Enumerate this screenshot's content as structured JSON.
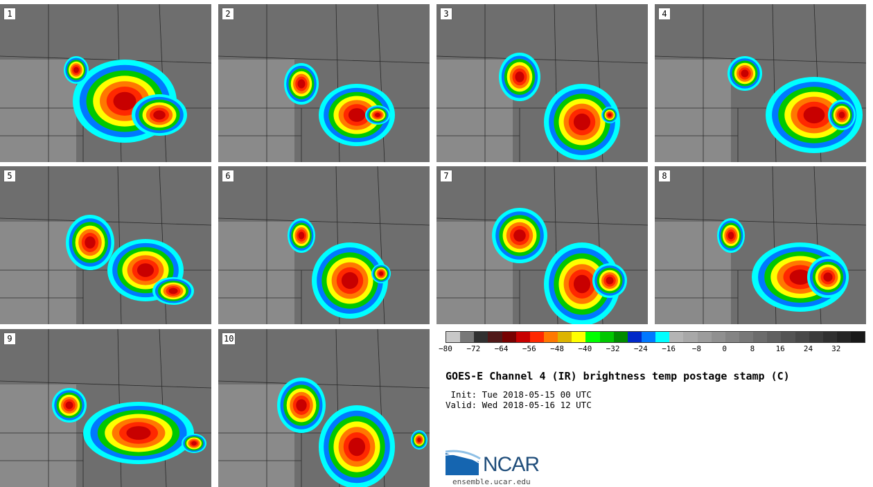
{
  "product": {
    "title": "GOES-E Channel 4 (IR) brightness temp postage stamp (C)",
    "init": " Init: Tue 2018-05-15 00 UTC",
    "valid": "Valid: Wed 2018-05-16 12 UTC"
  },
  "panels": [
    {
      "label": "1"
    },
    {
      "label": "2"
    },
    {
      "label": "3"
    },
    {
      "label": "4"
    },
    {
      "label": "5"
    },
    {
      "label": "6"
    },
    {
      "label": "7"
    },
    {
      "label": "8"
    },
    {
      "label": "9"
    },
    {
      "label": "10"
    }
  ],
  "colorbar": {
    "colors": [
      "#c8c8c8",
      "#787878",
      "#303030",
      "#501818",
      "#780000",
      "#c80000",
      "#ff2800",
      "#ff7800",
      "#dcb400",
      "#ffff00",
      "#00ff00",
      "#00c800",
      "#008c00",
      "#0028c8",
      "#0078ff",
      "#00ffff",
      "#b4b4b4",
      "#a8a8a8",
      "#9c9c9c",
      "#909090",
      "#848484",
      "#787878",
      "#6c6c6c",
      "#606060",
      "#545454",
      "#484848",
      "#3c3c3c",
      "#303030",
      "#242424",
      "#181818"
    ],
    "ticks": [
      "−80",
      "−72",
      "−64",
      "−56",
      "−48",
      "−40",
      "−32",
      "−24",
      "−16",
      "−8",
      "0",
      "8",
      "16",
      "24",
      "32"
    ]
  },
  "logo": {
    "name": "NCAR",
    "url": "ensemble.ucar.edu"
  }
}
